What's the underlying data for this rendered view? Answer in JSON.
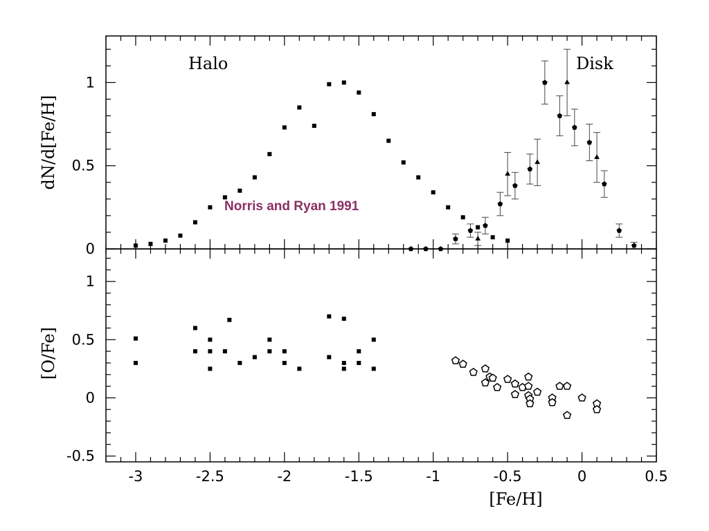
{
  "colors": {
    "annotation": "#8b2f63",
    "axis": "#000000"
  },
  "chart_data": [
    {
      "type": "scatter",
      "panel": "top",
      "xlabel": "",
      "ylabel": "dN/d[Fe/H]",
      "xlim": [
        -3.2,
        0.5
      ],
      "ylim": [
        0,
        1.28
      ],
      "xticks": [
        -3,
        -2.5,
        -2,
        -1.5,
        -1,
        -0.5,
        0,
        0.5
      ],
      "yticks": [
        0,
        0.5,
        1
      ],
      "ytick_labels": [
        "0",
        "0.5",
        "1"
      ],
      "labels": {
        "halo": "Halo",
        "disk": "Disk"
      },
      "annotation": "Norris and Ryan 1991",
      "series": [
        {
          "marker": "square",
          "points": [
            [
              -3.0,
              0.02
            ],
            [
              -2.9,
              0.03
            ],
            [
              -2.8,
              0.05
            ],
            [
              -2.7,
              0.08
            ],
            [
              -2.6,
              0.16
            ],
            [
              -2.5,
              0.25
            ],
            [
              -2.4,
              0.31
            ],
            [
              -2.3,
              0.35
            ],
            [
              -2.2,
              0.43
            ],
            [
              -2.1,
              0.57
            ],
            [
              -2.0,
              0.73
            ],
            [
              -1.9,
              0.85
            ],
            [
              -1.8,
              0.74
            ],
            [
              -1.7,
              0.99
            ],
            [
              -1.6,
              1.0
            ],
            [
              -1.5,
              0.94
            ],
            [
              -1.4,
              0.81
            ],
            [
              -1.3,
              0.65
            ],
            [
              -1.2,
              0.52
            ],
            [
              -1.1,
              0.43
            ],
            [
              -1.0,
              0.34
            ],
            [
              -0.9,
              0.25
            ],
            [
              -0.8,
              0.19
            ],
            [
              -0.7,
              0.13
            ],
            [
              -0.6,
              0.07
            ],
            [
              -0.5,
              0.05
            ]
          ]
        },
        {
          "marker": "pentagon-filled",
          "points": [
            [
              -1.15,
              0.0,
              0
            ],
            [
              -1.05,
              0.0,
              0
            ],
            [
              -0.95,
              0.0,
              0
            ],
            [
              -0.85,
              0.06,
              0.03
            ],
            [
              -0.75,
              0.11,
              0.04
            ],
            [
              -0.65,
              0.14,
              0.05
            ],
            [
              -0.55,
              0.27,
              0.07
            ],
            [
              -0.45,
              0.38,
              0.08
            ],
            [
              -0.35,
              0.48,
              0.09
            ],
            [
              -0.25,
              1.0,
              0.13
            ],
            [
              -0.15,
              0.8,
              0.12
            ],
            [
              -0.05,
              0.73,
              0.11
            ],
            [
              0.05,
              0.64,
              0.11
            ],
            [
              0.15,
              0.39,
              0.08
            ],
            [
              0.25,
              0.11,
              0.04
            ],
            [
              0.35,
              0.02,
              0.02
            ]
          ]
        },
        {
          "marker": "triangle-filled",
          "points": [
            [
              -0.7,
              0.06,
              0.04
            ],
            [
              -0.5,
              0.45,
              0.13
            ],
            [
              -0.3,
              0.52,
              0.14
            ],
            [
              -0.1,
              1.0,
              0.2
            ],
            [
              0.1,
              0.55,
              0.15
            ]
          ]
        }
      ]
    },
    {
      "type": "scatter",
      "panel": "bottom",
      "xlabel": "[Fe/H]",
      "ylabel": "[O/Fe]",
      "xlim": [
        -3.2,
        0.5
      ],
      "ylim": [
        -0.55,
        1.28
      ],
      "xticks": [
        -3,
        -2.5,
        -2,
        -1.5,
        -1,
        -0.5,
        0,
        0.5
      ],
      "xtick_labels": [
        "-3",
        "-2.5",
        "-2",
        "-1.5",
        "-1",
        "-0.5",
        "0",
        "0.5"
      ],
      "yticks": [
        -0.5,
        0,
        0.5,
        1
      ],
      "ytick_labels": [
        "-0.5",
        "0",
        "0.5",
        "1"
      ],
      "series": [
        {
          "marker": "square",
          "points": [
            [
              -3.0,
              0.51
            ],
            [
              -3.0,
              0.3
            ],
            [
              -2.6,
              0.6
            ],
            [
              -2.6,
              0.4
            ],
            [
              -2.5,
              0.5
            ],
            [
              -2.5,
              0.4
            ],
            [
              -2.5,
              0.25
            ],
            [
              -2.4,
              0.4
            ],
            [
              -2.37,
              0.67
            ],
            [
              -2.3,
              0.3
            ],
            [
              -2.2,
              0.35
            ],
            [
              -2.1,
              0.5
            ],
            [
              -2.1,
              0.4
            ],
            [
              -2.0,
              0.4
            ],
            [
              -2.0,
              0.3
            ],
            [
              -1.9,
              0.25
            ],
            [
              -1.7,
              0.7
            ],
            [
              -1.7,
              0.35
            ],
            [
              -1.6,
              0.68
            ],
            [
              -1.6,
              0.3
            ],
            [
              -1.6,
              0.25
            ],
            [
              -1.5,
              0.4
            ],
            [
              -1.5,
              0.3
            ],
            [
              -1.4,
              0.5
            ],
            [
              -1.4,
              0.25
            ]
          ]
        },
        {
          "marker": "pentagon-open",
          "points": [
            [
              -0.85,
              0.32
            ],
            [
              -0.8,
              0.29
            ],
            [
              -0.73,
              0.22
            ],
            [
              -0.65,
              0.25
            ],
            [
              -0.65,
              0.13
            ],
            [
              -0.62,
              0.18
            ],
            [
              -0.6,
              0.17
            ],
            [
              -0.57,
              0.09
            ],
            [
              -0.5,
              0.16
            ],
            [
              -0.45,
              0.12
            ],
            [
              -0.45,
              0.03
            ],
            [
              -0.4,
              0.09
            ],
            [
              -0.36,
              0.18
            ],
            [
              -0.36,
              0.1
            ],
            [
              -0.36,
              0.02
            ],
            [
              -0.35,
              -0.01
            ],
            [
              -0.35,
              -0.05
            ],
            [
              -0.3,
              0.05
            ],
            [
              -0.2,
              0.0
            ],
            [
              -0.2,
              -0.04
            ],
            [
              -0.15,
              0.1
            ],
            [
              -0.1,
              0.1
            ],
            [
              -0.1,
              -0.15
            ],
            [
              0.0,
              0.0
            ],
            [
              0.1,
              -0.05
            ],
            [
              0.1,
              -0.1
            ]
          ]
        }
      ]
    }
  ]
}
